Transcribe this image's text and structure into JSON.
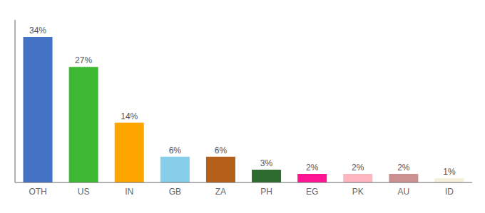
{
  "chart_data": {
    "type": "bar",
    "categories": [
      "OTH",
      "US",
      "IN",
      "GB",
      "ZA",
      "PH",
      "EG",
      "PK",
      "AU",
      "ID"
    ],
    "values": [
      34,
      27,
      14,
      6,
      6,
      3,
      2,
      2,
      2,
      1
    ],
    "value_labels": [
      "34%",
      "27%",
      "14%",
      "6%",
      "6%",
      "3%",
      "2%",
      "2%",
      "2%",
      "1%"
    ],
    "colors": [
      "#4472c4",
      "#3cb832",
      "#ffa500",
      "#87ceeb",
      "#b5601a",
      "#2e6b2e",
      "#ff1493",
      "#ffb6c1",
      "#cd9090",
      "#f5f0dc"
    ],
    "ylim": [
      0,
      38
    ],
    "data_labels": true,
    "tick_labels": "x",
    "grid": false
  }
}
